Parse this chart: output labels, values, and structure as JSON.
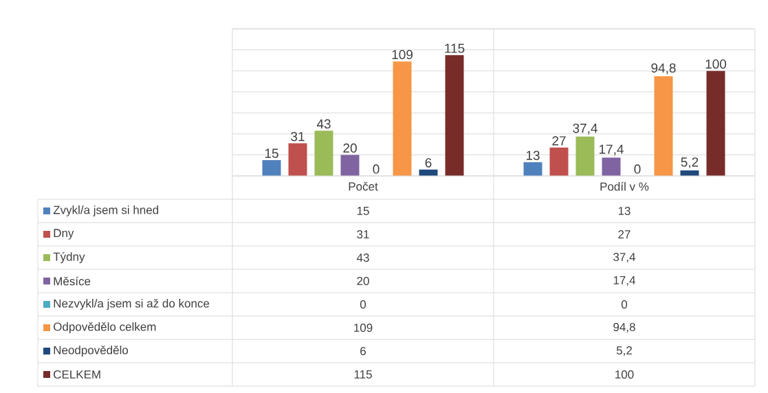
{
  "chart_data": {
    "type": "bar",
    "categories": [
      "Počet",
      "Podíl v %"
    ],
    "series": [
      {
        "name": "Zvykl/a jsem si hned",
        "color": "#4f81bd",
        "values": [
          15,
          13
        ],
        "value_labels": [
          "15",
          "13"
        ]
      },
      {
        "name": "Dny",
        "color": "#c0504d",
        "values": [
          31,
          27
        ],
        "value_labels": [
          "31",
          "27"
        ]
      },
      {
        "name": "Týdny",
        "color": "#9bbb59",
        "values": [
          43,
          37.4
        ],
        "value_labels": [
          "43",
          "37,4"
        ]
      },
      {
        "name": "Měsíce",
        "color": "#8064a2",
        "values": [
          20,
          17.4
        ],
        "value_labels": [
          "20",
          "17,4"
        ]
      },
      {
        "name": "Nezvykl/a jsem si až do konce",
        "color": "#4bacc6",
        "values": [
          0,
          0
        ],
        "value_labels": [
          "0",
          "0"
        ]
      },
      {
        "name": "Odpovědělo celkem",
        "color": "#f79646",
        "values": [
          109,
          94.8
        ],
        "value_labels": [
          "109",
          "94,8"
        ]
      },
      {
        "name": "Neodpovědělo",
        "color": "#1f497d",
        "values": [
          6,
          5.2
        ],
        "value_labels": [
          "6",
          "5,2"
        ]
      },
      {
        "name": "CELKEM",
        "color": "#772c2a",
        "values": [
          115,
          100
        ],
        "value_labels": [
          "115",
          "100"
        ]
      }
    ],
    "ylim": [
      0,
      140
    ],
    "yticks": [
      {
        "value": 0,
        "label": null
      },
      {
        "value": 20,
        "label": null
      },
      {
        "value": 40,
        "label": null
      },
      {
        "value": 60,
        "label": null
      },
      {
        "value": 80,
        "label": null
      },
      {
        "value": 100,
        "label": null
      },
      {
        "value": 120,
        "label": null
      },
      {
        "value": 140,
        "label": null
      }
    ],
    "grid": "y",
    "tick_labels": "x",
    "legend": "bottom"
  }
}
